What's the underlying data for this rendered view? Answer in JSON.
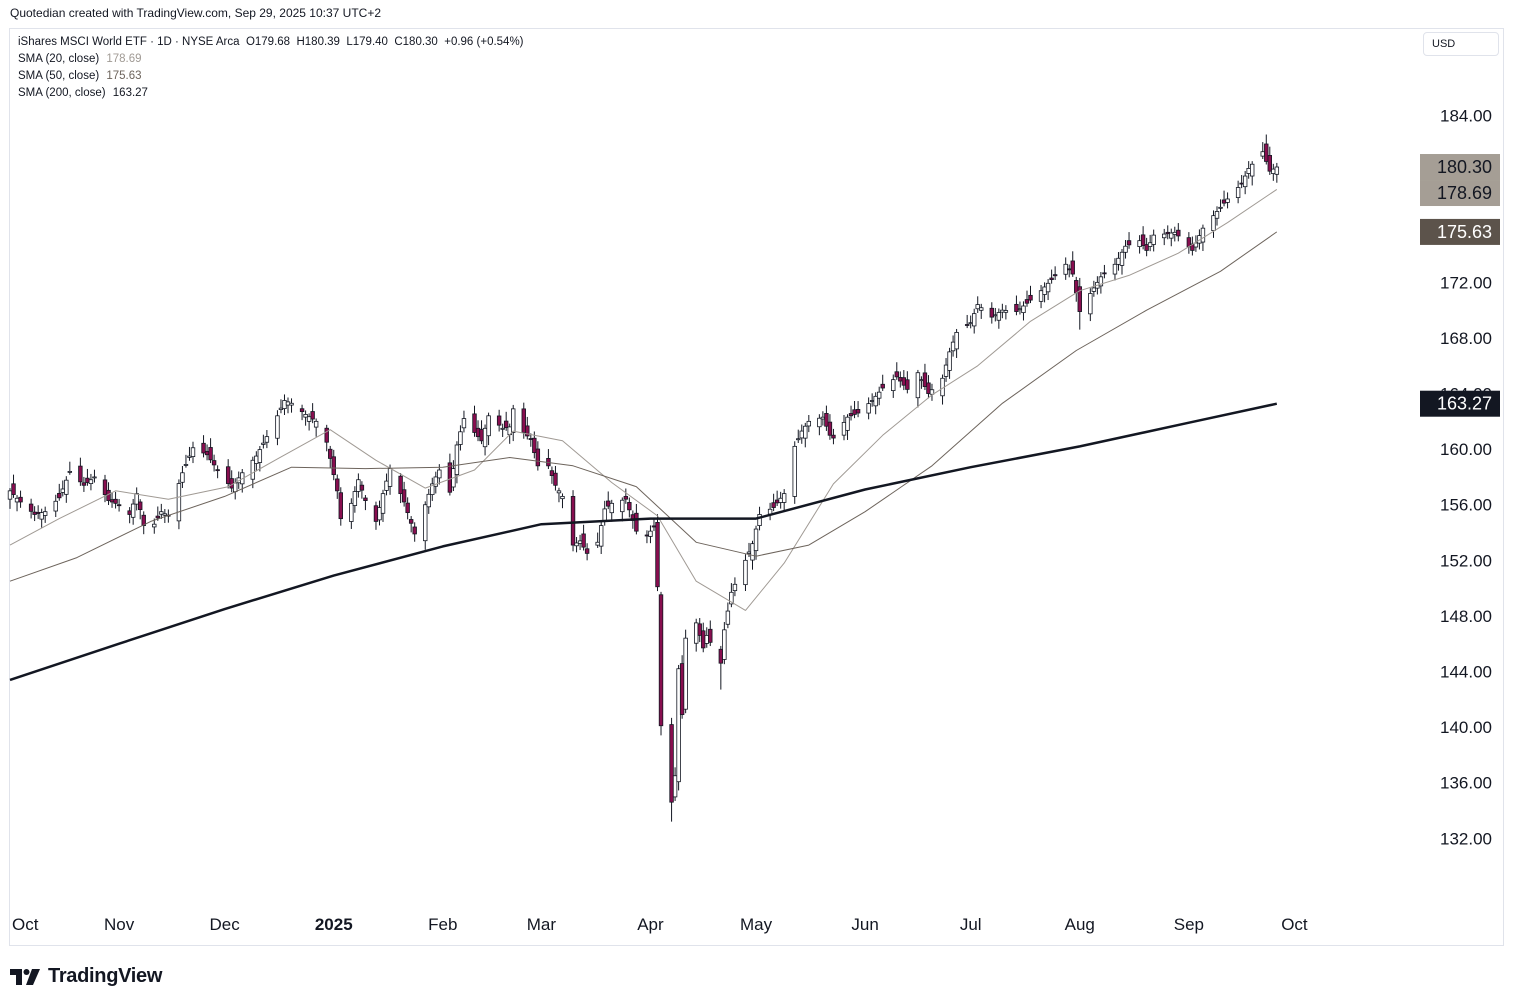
{
  "attribution": "Quotedian created with TradingView.com, Sep 29, 2025 10:37 UTC+2",
  "legend": {
    "symbol": "iShares MSCI World ETF · 1D · NYSE Arca",
    "open_label": "O",
    "open": "179.68",
    "high_label": "H",
    "high": "180.39",
    "low_label": "L",
    "low": "179.40",
    "close_label": "C",
    "close": "180.30",
    "change": "+0.96 (+0.54%)",
    "sma20_label": "SMA (20, close)",
    "sma20": "178.69",
    "sma50_label": "SMA (50, close)",
    "sma50": "175.63",
    "sma200_label": "SMA (200, close)",
    "sma200": "163.27"
  },
  "currency": "USD",
  "branding": "TradingView",
  "colors": {
    "up": "#ffffff",
    "down": "#880e4f",
    "wick": "#131722",
    "sma20": "#a09a94",
    "sma50": "#6d645c",
    "sma200": "#131722",
    "price_tag": "#a59e95",
    "sma50_tag": "#5c534b",
    "sma200_tag": "#131722"
  },
  "chart_data": {
    "type": "candlestick",
    "ylim": [
      129,
      188
    ],
    "y_ticks": [
      "132.00",
      "136.00",
      "140.00",
      "144.00",
      "148.00",
      "152.00",
      "156.00",
      "160.00",
      "164.00",
      "168.00",
      "172.00",
      "176.00",
      "180.00",
      "184.00"
    ],
    "x_range": [
      "2024-10-01",
      "2025-10-31"
    ],
    "x_ticks": [
      {
        "date": "2024-10-01",
        "label": "Oct",
        "bold": false
      },
      {
        "date": "2024-11-01",
        "label": "Nov",
        "bold": false
      },
      {
        "date": "2024-12-01",
        "label": "Dec",
        "bold": false
      },
      {
        "date": "2025-01-01",
        "label": "2025",
        "bold": true
      },
      {
        "date": "2025-02-01",
        "label": "Feb",
        "bold": false
      },
      {
        "date": "2025-03-01",
        "label": "Mar",
        "bold": false
      },
      {
        "date": "2025-04-01",
        "label": "Apr",
        "bold": false
      },
      {
        "date": "2025-05-01",
        "label": "May",
        "bold": false
      },
      {
        "date": "2025-06-01",
        "label": "Jun",
        "bold": false
      },
      {
        "date": "2025-07-01",
        "label": "Jul",
        "bold": false
      },
      {
        "date": "2025-08-01",
        "label": "Aug",
        "bold": false
      },
      {
        "date": "2025-09-01",
        "label": "Sep",
        "bold": false
      },
      {
        "date": "2025-10-01",
        "label": "Oct",
        "bold": false
      }
    ],
    "closes": [
      [
        "2024-10-01",
        157.0
      ],
      [
        "2024-10-04",
        156.2
      ],
      [
        "2024-10-08",
        155.3
      ],
      [
        "2024-10-11",
        155.5
      ],
      [
        "2024-10-15",
        156.5
      ],
      [
        "2024-10-18",
        158.4
      ],
      [
        "2024-10-22",
        157.4
      ],
      [
        "2024-10-25",
        158.0
      ],
      [
        "2024-10-29",
        156.3
      ],
      [
        "2024-11-01",
        156.0
      ],
      [
        "2024-11-04",
        155.3
      ],
      [
        "2024-11-06",
        156.8
      ],
      [
        "2024-11-08",
        154.5
      ],
      [
        "2024-11-11",
        154.6
      ],
      [
        "2024-11-13",
        155.5
      ],
      [
        "2024-11-15",
        155.2
      ],
      [
        "2024-11-19",
        158.3
      ],
      [
        "2024-11-22",
        160.1
      ],
      [
        "2024-11-26",
        159.6
      ],
      [
        "2024-11-29",
        158.5
      ],
      [
        "2024-12-03",
        157.2
      ],
      [
        "2024-12-06",
        158.3
      ],
      [
        "2024-12-10",
        159.5
      ],
      [
        "2024-12-13",
        160.9
      ],
      [
        "2024-12-16",
        162.4
      ],
      [
        "2024-12-18",
        163.5
      ],
      [
        "2024-12-20",
        163.3
      ],
      [
        "2024-12-24",
        162.5
      ],
      [
        "2024-12-27",
        162.0
      ],
      [
        "2024-12-30",
        160.5
      ],
      [
        "2025-01-02",
        157.0
      ],
      [
        "2025-01-03",
        155.0
      ],
      [
        "2025-01-06",
        156.1
      ],
      [
        "2025-01-08",
        157.8
      ],
      [
        "2025-01-10",
        156.3
      ],
      [
        "2025-01-13",
        154.8
      ],
      [
        "2025-01-15",
        156.8
      ],
      [
        "2025-01-17",
        158.6
      ],
      [
        "2025-01-21",
        156.2
      ],
      [
        "2025-01-24",
        153.9
      ],
      [
        "2025-01-27",
        156.0
      ],
      [
        "2025-01-29",
        157.5
      ],
      [
        "2025-01-31",
        158.5
      ],
      [
        "2025-02-03",
        156.9
      ],
      [
        "2025-02-05",
        160.3
      ],
      [
        "2025-02-07",
        162.2
      ],
      [
        "2025-02-10",
        161.2
      ],
      [
        "2025-02-12",
        160.6
      ],
      [
        "2025-02-14",
        162.4
      ],
      [
        "2025-02-18",
        161.5
      ],
      [
        "2025-02-20",
        161.6
      ],
      [
        "2025-02-21",
        162.9
      ],
      [
        "2025-02-24",
        161.2
      ],
      [
        "2025-02-26",
        160.7
      ],
      [
        "2025-02-28",
        158.8
      ],
      [
        "2025-03-03",
        158.8
      ],
      [
        "2025-03-05",
        157.4
      ],
      [
        "2025-03-07",
        156.6
      ],
      [
        "2025-03-10",
        153.1
      ],
      [
        "2025-03-12",
        153.4
      ],
      [
        "2025-03-14",
        152.5
      ],
      [
        "2025-03-17",
        153.3
      ],
      [
        "2025-03-19",
        155.7
      ],
      [
        "2025-03-21",
        156.1
      ],
      [
        "2025-03-25",
        156.4
      ],
      [
        "2025-03-28",
        154.1
      ],
      [
        "2025-03-31",
        153.8
      ],
      [
        "2025-04-02",
        154.4
      ],
      [
        "2025-04-03",
        150.1
      ],
      [
        "2025-04-04",
        140.1
      ],
      [
        "2025-04-07",
        134.6
      ],
      [
        "2025-04-08",
        136.5
      ],
      [
        "2025-04-09",
        144.2
      ],
      [
        "2025-04-10",
        140.9
      ],
      [
        "2025-04-11",
        146.4
      ],
      [
        "2025-04-14",
        147.5
      ],
      [
        "2025-04-16",
        145.7
      ],
      [
        "2025-04-17",
        146.6
      ],
      [
        "2025-04-21",
        144.6
      ],
      [
        "2025-04-22",
        147.0
      ],
      [
        "2025-04-24",
        149.7
      ],
      [
        "2025-04-28",
        152.0
      ],
      [
        "2025-04-30",
        153.2
      ],
      [
        "2025-05-02",
        155.3
      ],
      [
        "2025-05-06",
        155.8
      ],
      [
        "2025-05-09",
        156.8
      ],
      [
        "2025-05-12",
        160.2
      ],
      [
        "2025-05-14",
        161.3
      ],
      [
        "2025-05-16",
        162.0
      ],
      [
        "2025-05-20",
        162.3
      ],
      [
        "2025-05-22",
        161.0
      ],
      [
        "2025-05-23",
        160.8
      ],
      [
        "2025-05-27",
        162.3
      ],
      [
        "2025-05-30",
        162.6
      ],
      [
        "2025-06-03",
        163.5
      ],
      [
        "2025-06-06",
        164.4
      ],
      [
        "2025-06-10",
        165.2
      ],
      [
        "2025-06-13",
        164.3
      ],
      [
        "2025-06-16",
        165.5
      ],
      [
        "2025-06-19",
        164.0
      ],
      [
        "2025-06-23",
        165.1
      ],
      [
        "2025-06-25",
        167.0
      ],
      [
        "2025-06-27",
        168.4
      ],
      [
        "2025-07-01",
        169.1
      ],
      [
        "2025-07-03",
        170.4
      ],
      [
        "2025-07-07",
        169.5
      ],
      [
        "2025-07-10",
        170.0
      ],
      [
        "2025-07-14",
        169.9
      ],
      [
        "2025-07-17",
        170.5
      ],
      [
        "2025-07-21",
        171.4
      ],
      [
        "2025-07-24",
        172.2
      ],
      [
        "2025-07-28",
        173.3
      ],
      [
        "2025-07-30",
        172.6
      ],
      [
        "2025-08-01",
        169.9
      ],
      [
        "2025-08-04",
        171.2
      ],
      [
        "2025-08-07",
        172.4
      ],
      [
        "2025-08-11",
        173.3
      ],
      [
        "2025-08-14",
        174.6
      ],
      [
        "2025-08-18",
        175.0
      ],
      [
        "2025-08-20",
        174.3
      ],
      [
        "2025-08-22",
        175.4
      ],
      [
        "2025-08-26",
        175.5
      ],
      [
        "2025-08-28",
        175.6
      ],
      [
        "2025-09-02",
        174.3
      ],
      [
        "2025-09-05",
        175.9
      ],
      [
        "2025-09-09",
        177.1
      ],
      [
        "2025-09-12",
        178.0
      ],
      [
        "2025-09-16",
        179.1
      ],
      [
        "2025-09-18",
        180.2
      ],
      [
        "2025-09-22",
        181.4
      ],
      [
        "2025-09-24",
        180.0
      ],
      [
        "2025-09-26",
        180.3
      ]
    ],
    "lows_highlight": [
      [
        "2025-04-07",
        133.2
      ],
      [
        "2025-04-21",
        142.7
      ],
      [
        "2025-08-01",
        168.6
      ]
    ],
    "series": [
      {
        "name": "SMA (20, close)",
        "values": [
          [
            "2024-10-01",
            153.1
          ],
          [
            "2024-10-15",
            155.0
          ],
          [
            "2024-10-31",
            157.0
          ],
          [
            "2024-11-15",
            156.4
          ],
          [
            "2024-12-02",
            157.3
          ],
          [
            "2024-12-16",
            159.3
          ],
          [
            "2024-12-31",
            161.4
          ],
          [
            "2025-01-13",
            159.2
          ],
          [
            "2025-01-27",
            157.2
          ],
          [
            "2025-02-10",
            158.5
          ],
          [
            "2025-02-21",
            161.3
          ],
          [
            "2025-03-07",
            160.6
          ],
          [
            "2025-03-21",
            157.6
          ],
          [
            "2025-04-03",
            155.2
          ],
          [
            "2025-04-14",
            150.5
          ],
          [
            "2025-04-28",
            148.4
          ],
          [
            "2025-05-09",
            151.8
          ],
          [
            "2025-05-23",
            157.5
          ],
          [
            "2025-06-06",
            161.0
          ],
          [
            "2025-06-20",
            163.9
          ],
          [
            "2025-07-03",
            166.0
          ],
          [
            "2025-07-18",
            169.2
          ],
          [
            "2025-08-01",
            171.4
          ],
          [
            "2025-08-15",
            172.5
          ],
          [
            "2025-08-29",
            174.1
          ],
          [
            "2025-09-12",
            176.3
          ],
          [
            "2025-09-26",
            178.69
          ]
        ]
      },
      {
        "name": "SMA (50, close)",
        "values": [
          [
            "2024-10-01",
            150.5
          ],
          [
            "2024-10-20",
            152.2
          ],
          [
            "2024-11-10",
            154.8
          ],
          [
            "2024-12-01",
            156.6
          ],
          [
            "2024-12-20",
            158.7
          ],
          [
            "2025-01-10",
            158.6
          ],
          [
            "2025-02-01",
            158.7
          ],
          [
            "2025-02-20",
            159.4
          ],
          [
            "2025-03-10",
            158.8
          ],
          [
            "2025-03-28",
            157.3
          ],
          [
            "2025-04-14",
            153.3
          ],
          [
            "2025-05-01",
            152.3
          ],
          [
            "2025-05-16",
            153.1
          ],
          [
            "2025-06-01",
            155.5
          ],
          [
            "2025-06-20",
            158.8
          ],
          [
            "2025-07-10",
            163.3
          ],
          [
            "2025-07-31",
            167.1
          ],
          [
            "2025-08-20",
            170.0
          ],
          [
            "2025-09-10",
            172.8
          ],
          [
            "2025-09-26",
            175.63
          ]
        ]
      },
      {
        "name": "SMA (200, close)",
        "values": [
          [
            "2024-10-01",
            143.4
          ],
          [
            "2024-11-01",
            146.0
          ],
          [
            "2024-12-01",
            148.5
          ],
          [
            "2025-01-01",
            150.9
          ],
          [
            "2025-02-01",
            153.0
          ],
          [
            "2025-03-01",
            154.6
          ],
          [
            "2025-04-01",
            155.0
          ],
          [
            "2025-05-01",
            155.0
          ],
          [
            "2025-06-01",
            157.1
          ],
          [
            "2025-07-01",
            158.7
          ],
          [
            "2025-08-01",
            160.2
          ],
          [
            "2025-09-01",
            161.9
          ],
          [
            "2025-09-26",
            163.27
          ]
        ]
      }
    ],
    "price_tags": [
      {
        "label": "180.30",
        "value": 180.3,
        "kind": "last"
      },
      {
        "label": "178.69",
        "value": 178.69,
        "kind": "sma20"
      },
      {
        "label": "175.63",
        "value": 175.63,
        "kind": "sma50"
      },
      {
        "label": "163.27",
        "value": 163.27,
        "kind": "sma200"
      }
    ]
  }
}
